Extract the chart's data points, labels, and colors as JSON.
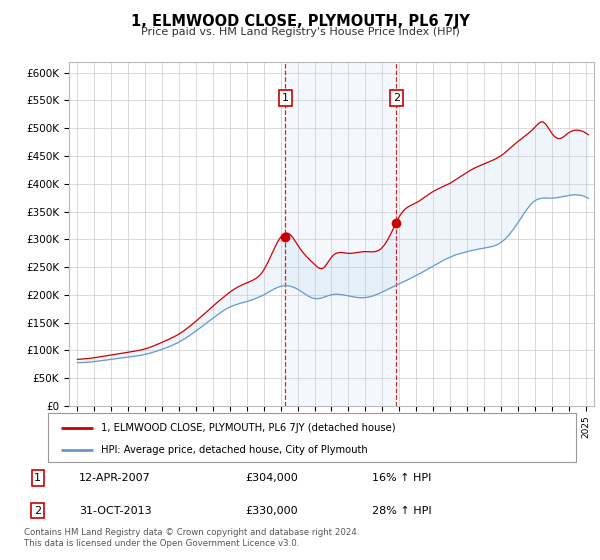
{
  "title": "1, ELMWOOD CLOSE, PLYMOUTH, PL6 7JY",
  "subtitle": "Price paid vs. HM Land Registry's House Price Index (HPI)",
  "red_color": "#cc0000",
  "blue_color": "#6699cc",
  "shade_color": "#ddeeff",
  "purchase_1_x": 2007.28,
  "purchase_1_y": 304000,
  "purchase_2_x": 2013.83,
  "purchase_2_y": 330000,
  "ylim": [
    0,
    620000
  ],
  "yticks": [
    0,
    50000,
    100000,
    150000,
    200000,
    250000,
    300000,
    350000,
    400000,
    450000,
    500000,
    550000,
    600000
  ],
  "xlim_left": 1994.5,
  "xlim_right": 2025.5,
  "legend1": "1, ELMWOOD CLOSE, PLYMOUTH, PL6 7JY (detached house)",
  "legend2": "HPI: Average price, detached house, City of Plymouth",
  "annotation1": [
    "1",
    "12-APR-2007",
    "£304,000",
    "16% ↑ HPI"
  ],
  "annotation2": [
    "2",
    "31-OCT-2013",
    "£330,000",
    "28% ↑ HPI"
  ],
  "footer": "Contains HM Land Registry data © Crown copyright and database right 2024.\nThis data is licensed under the Open Government Licence v3.0."
}
